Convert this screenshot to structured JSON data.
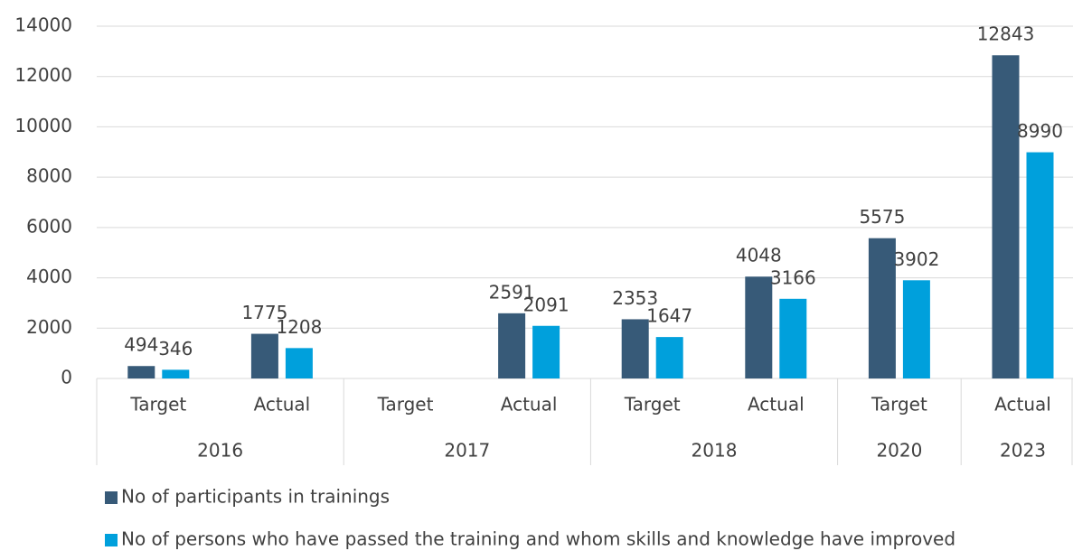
{
  "chart_data": {
    "type": "bar",
    "groups": [
      {
        "name": "2016",
        "categories": [
          "Target",
          "Actual"
        ]
      },
      {
        "name": "2017",
        "categories": [
          "Target",
          "Actual"
        ]
      },
      {
        "name": "2018",
        "categories": [
          "Target",
          "Actual"
        ]
      },
      {
        "name": "2020",
        "categories": [
          "Target"
        ]
      },
      {
        "name": "2023",
        "categories": [
          "Actual"
        ]
      }
    ],
    "series": [
      {
        "name": "No of participants in trainings",
        "color": "#375a78",
        "values": [
          494,
          1775,
          null,
          2591,
          2353,
          4048,
          5575,
          12843
        ]
      },
      {
        "name": "No of persons who have passed the training and whom skills and knowledge have improved",
        "color": "#00a0dc",
        "values": [
          346,
          1208,
          null,
          2091,
          1647,
          3166,
          3902,
          8990
        ]
      }
    ],
    "ylim": [
      0,
      14000
    ],
    "yticks": [
      0,
      2000,
      4000,
      6000,
      8000,
      10000,
      12000,
      14000
    ],
    "grid": true,
    "legend": "bottom"
  }
}
